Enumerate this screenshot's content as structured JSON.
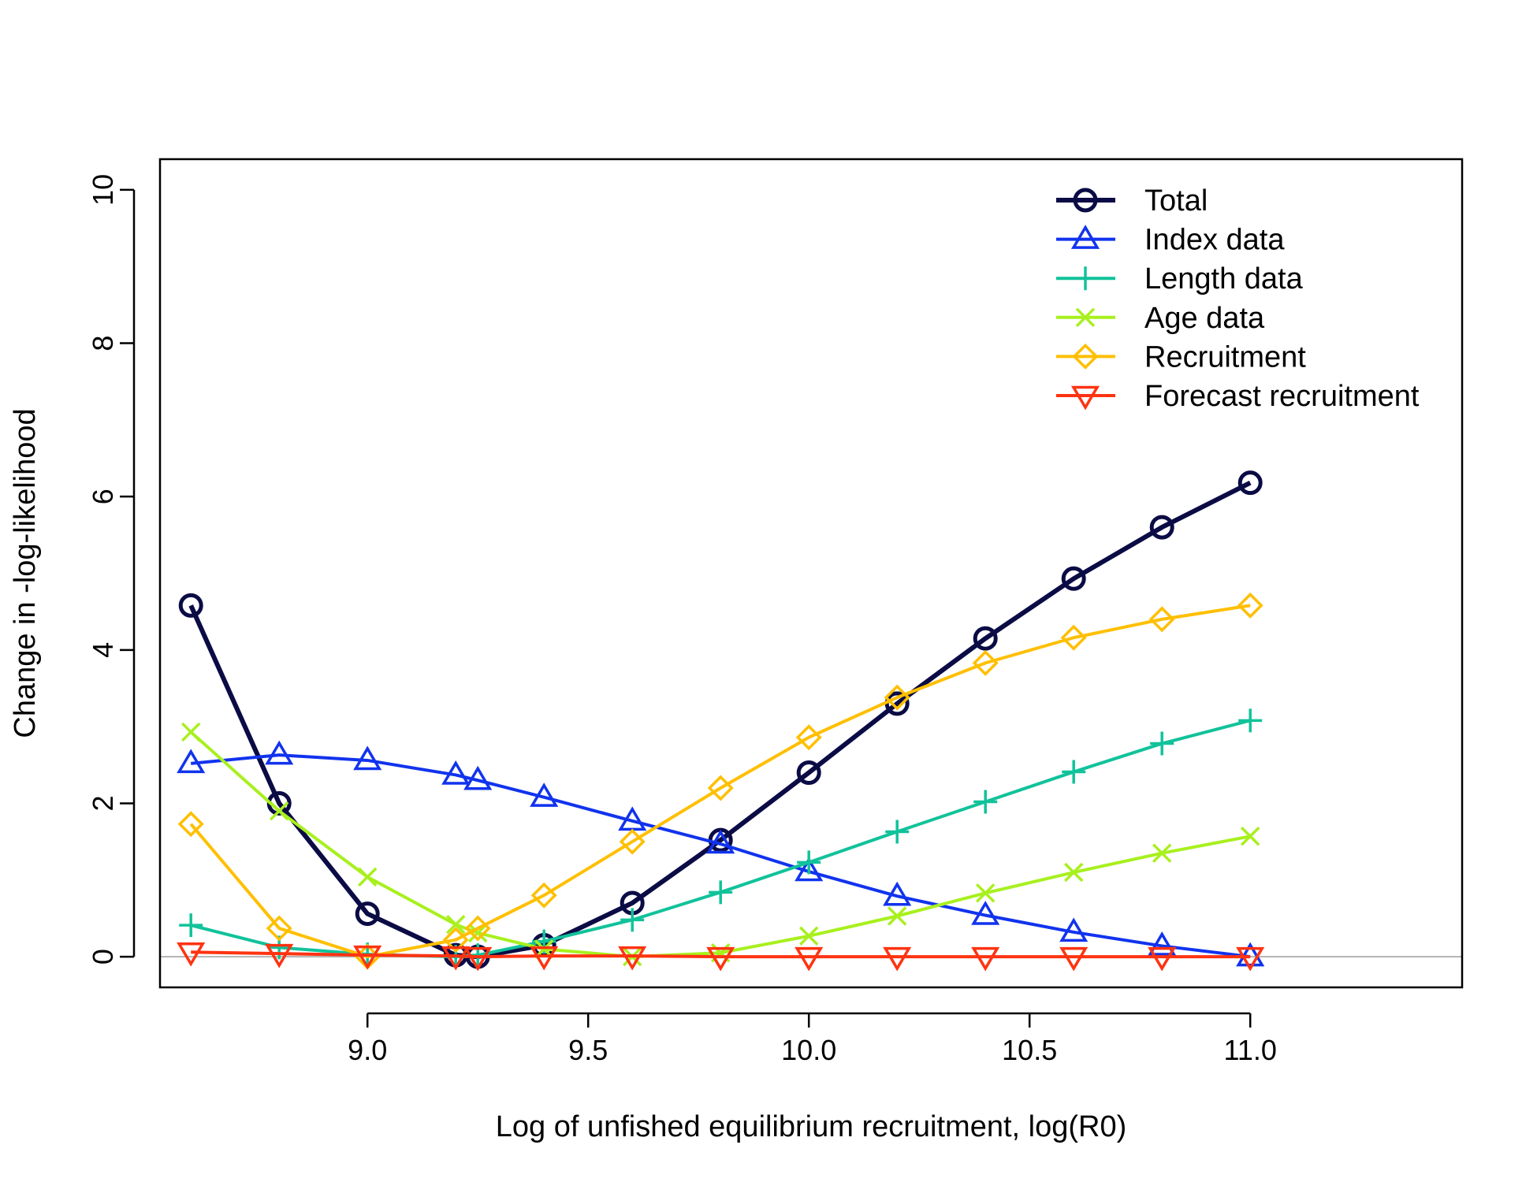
{
  "chart_data": {
    "type": "line",
    "title": "",
    "xlabel": "Log of unfished equilibrium recruitment, log(R0)",
    "ylabel": "Change in -log-likelihood",
    "xlim": [
      8.53,
      11.48
    ],
    "ylim": [
      -0.4,
      10.4
    ],
    "x_ticks": [
      "9.0",
      "9.5",
      "10.0",
      "10.5",
      "11.0"
    ],
    "y_ticks": [
      "0",
      "2",
      "4",
      "6",
      "8",
      "10"
    ],
    "grid": false,
    "reference_line_y": 0,
    "legend_position": "top-right",
    "x": [
      8.6,
      8.8,
      9.0,
      9.2,
      9.25,
      9.4,
      9.6,
      9.8,
      10.0,
      10.2,
      10.4,
      10.6,
      10.8,
      11.0
    ],
    "series": [
      {
        "name": "Total",
        "color": "#0b0b45",
        "marker": "circle",
        "values": [
          4.58,
          2.0,
          0.56,
          0.02,
          0.0,
          0.15,
          0.7,
          1.52,
          2.4,
          3.3,
          4.15,
          4.93,
          5.6,
          6.18
        ]
      },
      {
        "name": "Index data",
        "color": "#1133ee",
        "marker": "triangle-up",
        "values": [
          2.52,
          2.63,
          2.56,
          2.37,
          2.3,
          2.08,
          1.77,
          1.47,
          1.11,
          0.79,
          0.54,
          0.32,
          0.14,
          0.0
        ]
      },
      {
        "name": "Length data",
        "color": "#11c29a",
        "marker": "plus",
        "values": [
          0.41,
          0.12,
          0.03,
          0.0,
          0.02,
          0.2,
          0.48,
          0.84,
          1.23,
          1.63,
          2.02,
          2.41,
          2.78,
          3.08
        ]
      },
      {
        "name": "Age data",
        "color": "#a8f01e",
        "marker": "cross",
        "values": [
          2.93,
          1.9,
          1.04,
          0.42,
          0.31,
          0.1,
          0.0,
          0.05,
          0.27,
          0.53,
          0.83,
          1.1,
          1.35,
          1.57
        ]
      },
      {
        "name": "Recruitment",
        "color": "#ffbf00",
        "marker": "diamond",
        "values": [
          1.73,
          0.37,
          0.0,
          0.22,
          0.37,
          0.8,
          1.5,
          2.2,
          2.86,
          3.38,
          3.83,
          4.16,
          4.4,
          4.58
        ]
      },
      {
        "name": "Forecast recruitment",
        "color": "#ff3311",
        "marker": "triangle-down",
        "values": [
          0.06,
          0.04,
          0.02,
          0.01,
          0.0,
          0.01,
          0.01,
          0.0,
          0.0,
          0.0,
          0.0,
          0.0,
          0.0,
          0.0
        ]
      }
    ]
  }
}
